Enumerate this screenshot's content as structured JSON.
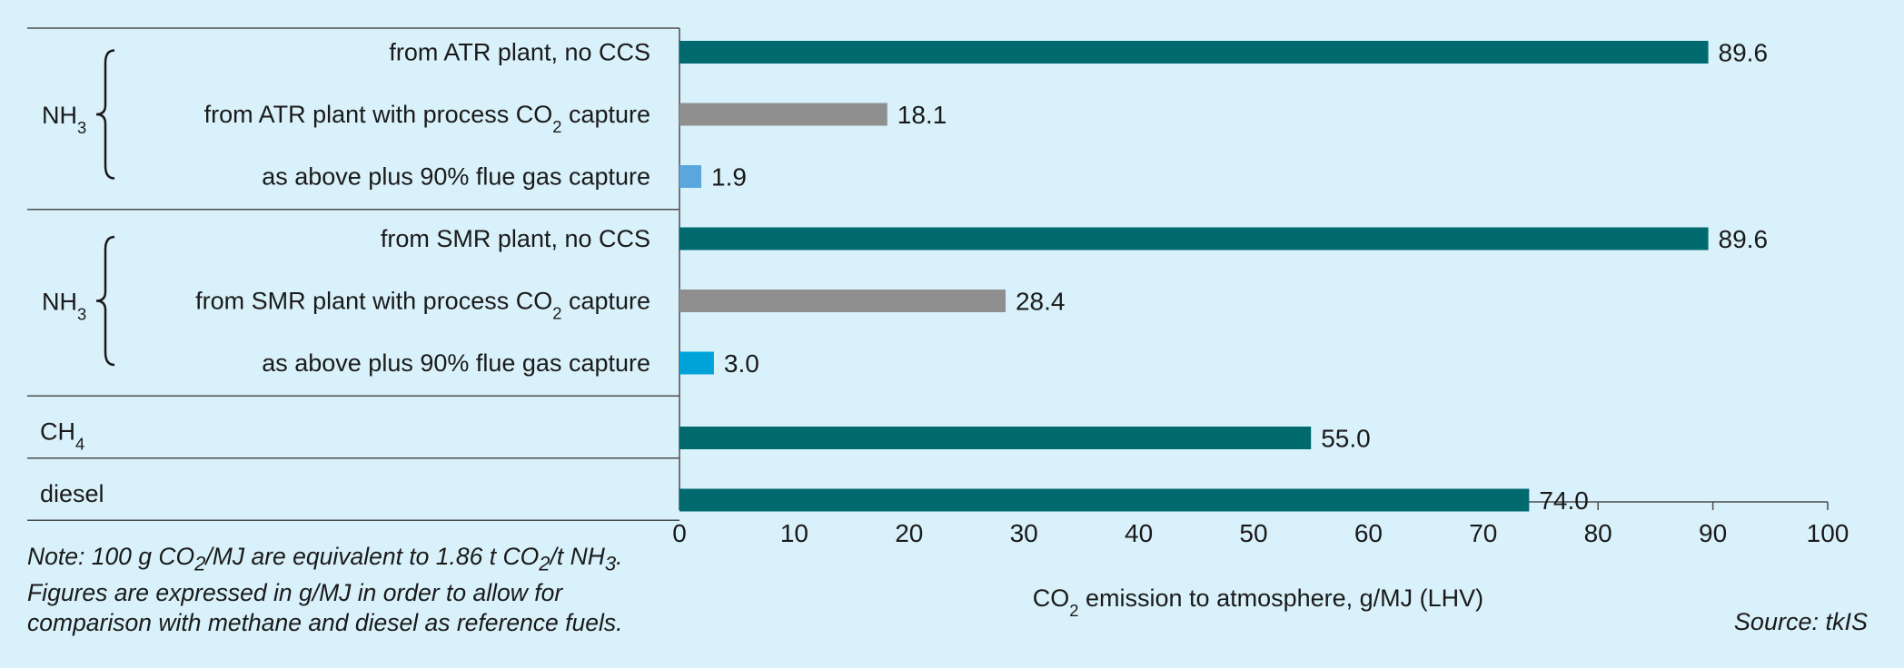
{
  "colors": {
    "background": "#d9f1fa",
    "teal": "#006a6f",
    "grey": "#8f8f8f",
    "lightblue": "#5ba6dd",
    "cyan": "#00a3d9",
    "lines": "#4d4d4d"
  },
  "chart_data": {
    "type": "bar",
    "orientation": "horizontal",
    "xlabel": "CO2 emission to atmosphere, g/MJ (LHV)",
    "xlim": [
      0,
      100
    ],
    "ticks": [
      "0",
      "10",
      "20",
      "30",
      "40",
      "50",
      "60",
      "70",
      "80",
      "90",
      "100"
    ],
    "groups": [
      {
        "label": "NH3",
        "rows": [
          {
            "label": "from ATR plant, no CCS",
            "value": 89.6,
            "value_label": "89.6",
            "color": "#006a6f"
          },
          {
            "label": "from ATR plant with process CO2 capture",
            "value": 18.1,
            "value_label": "18.1",
            "color": "#8f8f8f"
          },
          {
            "label": "as above plus 90% flue gas capture",
            "value": 1.9,
            "value_label": "1.9",
            "color": "#5ba6dd"
          }
        ]
      },
      {
        "label": "NH3",
        "rows": [
          {
            "label": "from SMR plant, no CCS",
            "value": 89.6,
            "value_label": "89.6",
            "color": "#006a6f"
          },
          {
            "label": "from SMR plant with process CO2 capture",
            "value": 28.4,
            "value_label": "28.4",
            "color": "#8f8f8f"
          },
          {
            "label": "as above plus 90% flue gas capture",
            "value": 3.0,
            "value_label": "3.0",
            "color": "#00a3d9"
          }
        ]
      },
      {
        "label": "CH4",
        "rows": [
          {
            "label": "",
            "value": 55.0,
            "value_label": "55.0",
            "color": "#006a6f"
          }
        ]
      },
      {
        "label": "diesel",
        "rows": [
          {
            "label": "",
            "value": 74.0,
            "value_label": "74.0",
            "color": "#006a6f"
          }
        ]
      }
    ]
  },
  "note": {
    "line1": "Note: 100 g CO2/MJ are equivalent to 1.86 t CO2/t NH3.",
    "line2": "Figures are expressed in g/MJ in order to allow for",
    "line3": "comparison with methane and diesel as reference fuels."
  },
  "source": "Source: tkIS"
}
